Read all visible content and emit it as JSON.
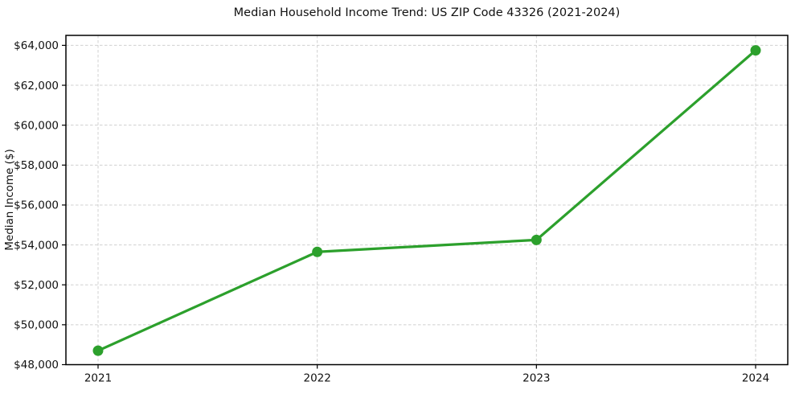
{
  "chart_data": {
    "type": "line",
    "title": "Median Household Income Trend: US ZIP Code 43326 (2021-2024)",
    "xlabel": "",
    "ylabel": "Median Income ($)",
    "categories": [
      "2021",
      "2022",
      "2023",
      "2024"
    ],
    "series": [
      {
        "name": "Median Household Income",
        "values": [
          48700,
          53650,
          54250,
          63750
        ],
        "color": "#2ca02c",
        "marker": "circle"
      }
    ],
    "ylim": [
      48000,
      64500
    ],
    "yticks": [
      48000,
      50000,
      52000,
      54000,
      56000,
      58000,
      60000,
      62000,
      64000
    ],
    "ytick_labels": [
      "$48,000",
      "$50,000",
      "$52,000",
      "$54,000",
      "$56,000",
      "$58,000",
      "$60,000",
      "$62,000",
      "$64,000"
    ],
    "grid": true,
    "grid_style": "dashed",
    "legend_position": "none",
    "colors": {
      "line": "#2ca02c",
      "marker": "#2ca02c",
      "grid": "#d0d0d0",
      "axis": "#000000",
      "text": "#111111",
      "background": "#ffffff"
    }
  }
}
